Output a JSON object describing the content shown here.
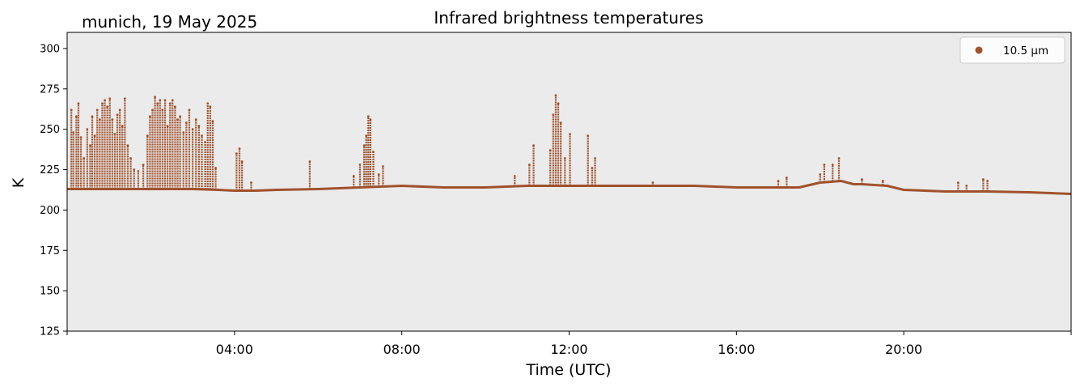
{
  "chart_data": {
    "type": "scatter",
    "title": "Infrared brightness temperatures",
    "location_date": "munich, 19 May 2025",
    "xlabel": "Time (UTC)",
    "ylabel": "K",
    "xlim_hours": [
      0,
      24
    ],
    "ylim": [
      125,
      310
    ],
    "yticks": [
      125,
      150,
      175,
      200,
      225,
      250,
      275,
      300
    ],
    "xticks": [
      "04:00",
      "08:00",
      "12:00",
      "16:00",
      "20:00"
    ],
    "xtick_hours": [
      4,
      8,
      12,
      16,
      20
    ],
    "grid": false,
    "legend_position": "upper right",
    "background_color": "#ebebeb",
    "series": [
      {
        "name": "10.5 µm",
        "color": "#a0522d",
        "marker": "dot",
        "baseline": [
          [
            0.0,
            213
          ],
          [
            1.0,
            213
          ],
          [
            2.0,
            213
          ],
          [
            3.0,
            213
          ],
          [
            3.6,
            212.5
          ],
          [
            4.0,
            212
          ],
          [
            4.5,
            212
          ],
          [
            5.0,
            212.5
          ],
          [
            6.0,
            213
          ],
          [
            7.0,
            214
          ],
          [
            7.5,
            214.5
          ],
          [
            8.0,
            215
          ],
          [
            9.0,
            214
          ],
          [
            10.0,
            214
          ],
          [
            11.0,
            215
          ],
          [
            12.0,
            215
          ],
          [
            13.0,
            215
          ],
          [
            14.0,
            215
          ],
          [
            15.0,
            215
          ],
          [
            16.0,
            214
          ],
          [
            16.5,
            214
          ],
          [
            17.0,
            214
          ],
          [
            17.5,
            214
          ],
          [
            18.0,
            217
          ],
          [
            18.5,
            218
          ],
          [
            18.8,
            216
          ],
          [
            19.0,
            216
          ],
          [
            19.6,
            215
          ],
          [
            20.0,
            212.5
          ],
          [
            21.0,
            211.5
          ],
          [
            22.0,
            211.5
          ],
          [
            23.0,
            211
          ],
          [
            24.0,
            210
          ]
        ],
        "spikes": [
          [
            0.1,
            262
          ],
          [
            0.15,
            248
          ],
          [
            0.22,
            258
          ],
          [
            0.27,
            266
          ],
          [
            0.33,
            245
          ],
          [
            0.4,
            232
          ],
          [
            0.48,
            250
          ],
          [
            0.55,
            240
          ],
          [
            0.6,
            258
          ],
          [
            0.66,
            246
          ],
          [
            0.72,
            262
          ],
          [
            0.78,
            256
          ],
          [
            0.84,
            266
          ],
          [
            0.9,
            268
          ],
          [
            0.96,
            264
          ],
          [
            1.02,
            269
          ],
          [
            1.08,
            256
          ],
          [
            1.14,
            247
          ],
          [
            1.2,
            259
          ],
          [
            1.26,
            262
          ],
          [
            1.32,
            252
          ],
          [
            1.38,
            269
          ],
          [
            1.45,
            240
          ],
          [
            1.52,
            232
          ],
          [
            1.6,
            225
          ],
          [
            1.7,
            224
          ],
          [
            1.82,
            228
          ],
          [
            1.92,
            246
          ],
          [
            1.98,
            258
          ],
          [
            2.04,
            262
          ],
          [
            2.1,
            270
          ],
          [
            2.16,
            266
          ],
          [
            2.22,
            268
          ],
          [
            2.28,
            262
          ],
          [
            2.34,
            268
          ],
          [
            2.4,
            252
          ],
          [
            2.46,
            266
          ],
          [
            2.52,
            268
          ],
          [
            2.58,
            264
          ],
          [
            2.64,
            256
          ],
          [
            2.7,
            258
          ],
          [
            2.78,
            248
          ],
          [
            2.85,
            254
          ],
          [
            2.92,
            262
          ],
          [
            3.0,
            250
          ],
          [
            3.08,
            256
          ],
          [
            3.15,
            252
          ],
          [
            3.22,
            246
          ],
          [
            3.3,
            242
          ],
          [
            3.36,
            266
          ],
          [
            3.42,
            264
          ],
          [
            3.48,
            255
          ],
          [
            3.55,
            226
          ],
          [
            4.05,
            235
          ],
          [
            4.12,
            238
          ],
          [
            4.18,
            230
          ],
          [
            4.4,
            217
          ],
          [
            5.8,
            230
          ],
          [
            6.85,
            221
          ],
          [
            7.0,
            228
          ],
          [
            7.1,
            240
          ],
          [
            7.15,
            246
          ],
          [
            7.2,
            258
          ],
          [
            7.25,
            256
          ],
          [
            7.32,
            236
          ],
          [
            7.45,
            222
          ],
          [
            7.55,
            227
          ],
          [
            10.7,
            221
          ],
          [
            11.05,
            228
          ],
          [
            11.15,
            240
          ],
          [
            11.55,
            237
          ],
          [
            11.62,
            259
          ],
          [
            11.68,
            271
          ],
          [
            11.74,
            266
          ],
          [
            11.8,
            254
          ],
          [
            11.9,
            232
          ],
          [
            12.02,
            247
          ],
          [
            12.45,
            246
          ],
          [
            12.55,
            226
          ],
          [
            12.62,
            232
          ],
          [
            14.0,
            217
          ],
          [
            17.0,
            218
          ],
          [
            17.2,
            220
          ],
          [
            18.0,
            222
          ],
          [
            18.1,
            228
          ],
          [
            18.3,
            228
          ],
          [
            18.45,
            232
          ],
          [
            19.0,
            219
          ],
          [
            19.5,
            218
          ],
          [
            21.3,
            217
          ],
          [
            21.5,
            215
          ],
          [
            21.9,
            219
          ],
          [
            22.0,
            218
          ]
        ]
      }
    ]
  }
}
